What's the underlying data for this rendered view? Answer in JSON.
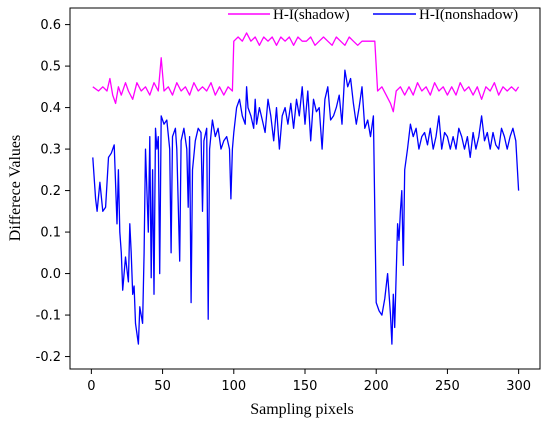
{
  "chart_data": {
    "type": "line",
    "xlabel": "Sampling pixels",
    "ylabel": "Differece Values",
    "xlim": [
      -15,
      315
    ],
    "ylim": [
      -0.23,
      0.64
    ],
    "x_ticks": [
      0,
      50,
      100,
      150,
      200,
      250,
      300
    ],
    "y_ticks": [
      -0.2,
      -0.1,
      0.0,
      0.1,
      0.2,
      0.3,
      0.4,
      0.5,
      0.6
    ],
    "y_tick_labels": [
      "-0.2",
      "-0.1",
      "0.0",
      "0.1",
      "0.2",
      "0.3",
      "0.4",
      "0.5",
      "0.6"
    ],
    "grid": false,
    "legend_position": "top-right",
    "series": [
      {
        "name": "H-I(shadow)",
        "color": "#ff00ff",
        "points": [
          [
            1,
            0.45
          ],
          [
            5,
            0.44
          ],
          [
            8,
            0.45
          ],
          [
            11,
            0.44
          ],
          [
            13,
            0.47
          ],
          [
            15,
            0.43
          ],
          [
            17,
            0.41
          ],
          [
            19,
            0.45
          ],
          [
            21,
            0.43
          ],
          [
            24,
            0.46
          ],
          [
            26,
            0.44
          ],
          [
            29,
            0.42
          ],
          [
            32,
            0.46
          ],
          [
            35,
            0.44
          ],
          [
            38,
            0.45
          ],
          [
            41,
            0.43
          ],
          [
            44,
            0.46
          ],
          [
            47,
            0.44
          ],
          [
            49,
            0.52
          ],
          [
            51,
            0.44
          ],
          [
            54,
            0.45
          ],
          [
            57,
            0.43
          ],
          [
            60,
            0.46
          ],
          [
            63,
            0.44
          ],
          [
            66,
            0.45
          ],
          [
            69,
            0.43
          ],
          [
            72,
            0.46
          ],
          [
            75,
            0.44
          ],
          [
            78,
            0.45
          ],
          [
            81,
            0.44
          ],
          [
            84,
            0.46
          ],
          [
            87,
            0.43
          ],
          [
            90,
            0.45
          ],
          [
            93,
            0.43
          ],
          [
            96,
            0.45
          ],
          [
            99,
            0.44
          ],
          [
            100,
            0.56
          ],
          [
            103,
            0.57
          ],
          [
            106,
            0.56
          ],
          [
            109,
            0.58
          ],
          [
            112,
            0.56
          ],
          [
            115,
            0.57
          ],
          [
            118,
            0.55
          ],
          [
            121,
            0.57
          ],
          [
            124,
            0.56
          ],
          [
            127,
            0.57
          ],
          [
            130,
            0.55
          ],
          [
            133,
            0.57
          ],
          [
            136,
            0.56
          ],
          [
            139,
            0.57
          ],
          [
            142,
            0.55
          ],
          [
            145,
            0.57
          ],
          [
            148,
            0.56
          ],
          [
            151,
            0.56
          ],
          [
            154,
            0.57
          ],
          [
            157,
            0.55
          ],
          [
            160,
            0.56
          ],
          [
            163,
            0.57
          ],
          [
            166,
            0.56
          ],
          [
            169,
            0.55
          ],
          [
            172,
            0.57
          ],
          [
            175,
            0.56
          ],
          [
            178,
            0.55
          ],
          [
            181,
            0.57
          ],
          [
            184,
            0.56
          ],
          [
            187,
            0.55
          ],
          [
            190,
            0.56
          ],
          [
            193,
            0.56
          ],
          [
            196,
            0.56
          ],
          [
            199,
            0.56
          ],
          [
            201,
            0.44
          ],
          [
            204,
            0.45
          ],
          [
            207,
            0.43
          ],
          [
            210,
            0.41
          ],
          [
            212,
            0.39
          ],
          [
            214,
            0.44
          ],
          [
            217,
            0.45
          ],
          [
            220,
            0.43
          ],
          [
            223,
            0.45
          ],
          [
            226,
            0.43
          ],
          [
            229,
            0.46
          ],
          [
            232,
            0.44
          ],
          [
            235,
            0.45
          ],
          [
            238,
            0.43
          ],
          [
            241,
            0.46
          ],
          [
            244,
            0.44
          ],
          [
            247,
            0.45
          ],
          [
            250,
            0.43
          ],
          [
            253,
            0.45
          ],
          [
            256,
            0.43
          ],
          [
            259,
            0.46
          ],
          [
            262,
            0.44
          ],
          [
            265,
            0.45
          ],
          [
            268,
            0.43
          ],
          [
            271,
            0.45
          ],
          [
            274,
            0.42
          ],
          [
            277,
            0.45
          ],
          [
            280,
            0.44
          ],
          [
            283,
            0.46
          ],
          [
            286,
            0.43
          ],
          [
            289,
            0.45
          ],
          [
            292,
            0.44
          ],
          [
            295,
            0.45
          ],
          [
            298,
            0.44
          ],
          [
            300,
            0.45
          ]
        ]
      },
      {
        "name": "H-I(nonshadow)",
        "color": "#0000ff",
        "points": [
          [
            1,
            0.28
          ],
          [
            3,
            0.18
          ],
          [
            4,
            0.15
          ],
          [
            6,
            0.22
          ],
          [
            8,
            0.15
          ],
          [
            10,
            0.16
          ],
          [
            12,
            0.28
          ],
          [
            14,
            0.29
          ],
          [
            16,
            0.31
          ],
          [
            18,
            0.12
          ],
          [
            19,
            0.25
          ],
          [
            20,
            0.1
          ],
          [
            21,
            0.05
          ],
          [
            22,
            -0.04
          ],
          [
            24,
            0.04
          ],
          [
            26,
            -0.02
          ],
          [
            27,
            0.12
          ],
          [
            28,
            0.05
          ],
          [
            29,
            -0.05
          ],
          [
            30,
            -0.03
          ],
          [
            31,
            -0.12
          ],
          [
            33,
            -0.17
          ],
          [
            34,
            -0.08
          ],
          [
            35,
            -0.1
          ],
          [
            36,
            -0.12
          ],
          [
            37,
            0.05
          ],
          [
            38,
            0.3
          ],
          [
            40,
            0.1
          ],
          [
            41,
            0.33
          ],
          [
            42,
            -0.01
          ],
          [
            43,
            0.25
          ],
          [
            44,
            -0.05
          ],
          [
            45,
            0.35
          ],
          [
            46,
            0.3
          ],
          [
            47,
            0.33
          ],
          [
            48,
            0.0
          ],
          [
            49,
            0.38
          ],
          [
            51,
            0.36
          ],
          [
            53,
            0.37
          ],
          [
            55,
            0.3
          ],
          [
            56,
            0.05
          ],
          [
            57,
            0.33
          ],
          [
            59,
            0.35
          ],
          [
            60,
            0.3
          ],
          [
            62,
            0.03
          ],
          [
            63,
            0.32
          ],
          [
            65,
            0.35
          ],
          [
            67,
            0.3
          ],
          [
            68,
            0.16
          ],
          [
            69,
            0.33
          ],
          [
            70,
            -0.07
          ],
          [
            71,
            0.25
          ],
          [
            73,
            0.32
          ],
          [
            75,
            0.35
          ],
          [
            77,
            0.34
          ],
          [
            78,
            0.15
          ],
          [
            79,
            0.32
          ],
          [
            81,
            0.35
          ],
          [
            82,
            -0.11
          ],
          [
            83,
            0.3
          ],
          [
            85,
            0.37
          ],
          [
            87,
            0.33
          ],
          [
            89,
            0.35
          ],
          [
            91,
            0.3
          ],
          [
            93,
            0.32
          ],
          [
            95,
            0.33
          ],
          [
            97,
            0.3
          ],
          [
            98,
            0.18
          ],
          [
            99,
            0.3
          ],
          [
            100,
            0.34
          ],
          [
            102,
            0.4
          ],
          [
            104,
            0.42
          ],
          [
            106,
            0.38
          ],
          [
            108,
            0.36
          ],
          [
            109,
            0.45
          ],
          [
            110,
            0.4
          ],
          [
            112,
            0.38
          ],
          [
            114,
            0.35
          ],
          [
            115,
            0.42
          ],
          [
            116,
            0.36
          ],
          [
            118,
            0.4
          ],
          [
            120,
            0.37
          ],
          [
            122,
            0.34
          ],
          [
            124,
            0.42
          ],
          [
            126,
            0.38
          ],
          [
            128,
            0.32
          ],
          [
            130,
            0.4
          ],
          [
            132,
            0.3
          ],
          [
            134,
            0.38
          ],
          [
            136,
            0.4
          ],
          [
            138,
            0.36
          ],
          [
            140,
            0.41
          ],
          [
            142,
            0.35
          ],
          [
            144,
            0.42
          ],
          [
            146,
            0.38
          ],
          [
            148,
            0.45
          ],
          [
            150,
            0.36
          ],
          [
            152,
            0.44
          ],
          [
            154,
            0.32
          ],
          [
            156,
            0.42
          ],
          [
            158,
            0.39
          ],
          [
            160,
            0.4
          ],
          [
            162,
            0.3
          ],
          [
            164,
            0.42
          ],
          [
            166,
            0.45
          ],
          [
            168,
            0.37
          ],
          [
            170,
            0.38
          ],
          [
            172,
            0.4
          ],
          [
            174,
            0.43
          ],
          [
            176,
            0.36
          ],
          [
            178,
            0.49
          ],
          [
            180,
            0.45
          ],
          [
            182,
            0.47
          ],
          [
            184,
            0.41
          ],
          [
            186,
            0.36
          ],
          [
            188,
            0.4
          ],
          [
            190,
            0.45
          ],
          [
            192,
            0.35
          ],
          [
            194,
            0.37
          ],
          [
            196,
            0.33
          ],
          [
            198,
            0.38
          ],
          [
            199,
            0.15
          ],
          [
            200,
            -0.07
          ],
          [
            202,
            -0.09
          ],
          [
            204,
            -0.1
          ],
          [
            206,
            -0.06
          ],
          [
            208,
            0.0
          ],
          [
            210,
            -0.1
          ],
          [
            211,
            -0.17
          ],
          [
            212,
            -0.05
          ],
          [
            213,
            -0.13
          ],
          [
            215,
            0.12
          ],
          [
            216,
            0.08
          ],
          [
            217,
            0.15
          ],
          [
            218,
            0.2
          ],
          [
            219,
            0.02
          ],
          [
            220,
            0.25
          ],
          [
            222,
            0.3
          ],
          [
            224,
            0.36
          ],
          [
            226,
            0.33
          ],
          [
            228,
            0.35
          ],
          [
            230,
            0.3
          ],
          [
            232,
            0.33
          ],
          [
            234,
            0.34
          ],
          [
            236,
            0.31
          ],
          [
            238,
            0.35
          ],
          [
            240,
            0.3
          ],
          [
            242,
            0.33
          ],
          [
            244,
            0.38
          ],
          [
            246,
            0.3
          ],
          [
            248,
            0.34
          ],
          [
            250,
            0.33
          ],
          [
            252,
            0.3
          ],
          [
            254,
            0.33
          ],
          [
            256,
            0.3
          ],
          [
            258,
            0.35
          ],
          [
            260,
            0.33
          ],
          [
            262,
            0.3
          ],
          [
            264,
            0.33
          ],
          [
            266,
            0.28
          ],
          [
            268,
            0.34
          ],
          [
            270,
            0.3
          ],
          [
            272,
            0.33
          ],
          [
            274,
            0.38
          ],
          [
            276,
            0.32
          ],
          [
            278,
            0.34
          ],
          [
            280,
            0.3
          ],
          [
            282,
            0.34
          ],
          [
            284,
            0.31
          ],
          [
            286,
            0.3
          ],
          [
            288,
            0.35
          ],
          [
            290,
            0.33
          ],
          [
            292,
            0.3
          ],
          [
            294,
            0.33
          ],
          [
            296,
            0.35
          ],
          [
            298,
            0.32
          ],
          [
            300,
            0.2
          ]
        ]
      }
    ]
  }
}
